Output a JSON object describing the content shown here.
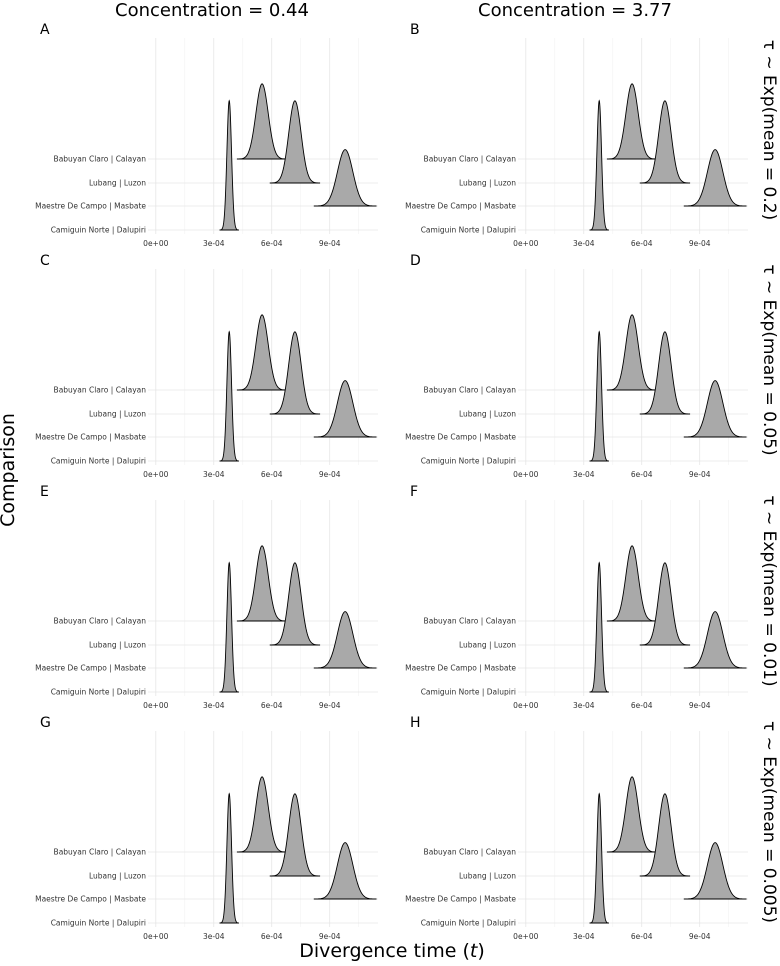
{
  "figure": {
    "x_axis_title": "Divergence time (t)",
    "x_axis_title_main": "Divergence time (",
    "x_axis_title_var": "t",
    "x_axis_title_end": ")",
    "y_axis_title": "Comparison",
    "column_titles": [
      "Concentration = 0.44",
      "Concentration = 3.77"
    ],
    "row_titles": [
      "τ ~ Exp(mean = 0.2)",
      "τ ~ Exp(mean = 0.05)",
      "τ ~ Exp(mean = 0.01)",
      "τ ~ Exp(mean = 0.005)"
    ]
  },
  "chart_data": [
    {
      "panel": "A",
      "type": "area",
      "concentration": "0.44",
      "prior": "τ ~ Exp(mean = 0.2)",
      "categories": [
        "Camiguin Norte | Dalupiri",
        "Maestre De Campo | Masbate",
        "Lubang | Luzon",
        "Babuyan Claro | Calayan"
      ],
      "x_ticks": [
        "0e+00",
        "3e-04",
        "6e-04",
        "9e-04"
      ],
      "xlim": [
        -3e-05,
        0.00115
      ],
      "series": [
        {
          "category": "Camiguin Norte | Dalupiri",
          "mode": 0.00038,
          "sd": 1.2e-05,
          "height": 5.5
        },
        {
          "category": "Maestre De Campo | Masbate",
          "mode": 0.00098,
          "sd": 4e-05,
          "height": 2.4
        },
        {
          "category": "Lubang | Luzon",
          "mode": 0.00072,
          "sd": 3.2e-05,
          "height": 3.5
        },
        {
          "category": "Babuyan Claro | Calayan",
          "mode": 0.00055,
          "sd": 3.2e-05,
          "height": 3.2
        }
      ]
    },
    {
      "panel": "B",
      "type": "area",
      "concentration": "3.77",
      "prior": "τ ~ Exp(mean = 0.2)",
      "categories": [
        "Camiguin Norte | Dalupiri",
        "Maestre De Campo | Masbate",
        "Lubang | Luzon",
        "Babuyan Claro | Calayan"
      ],
      "x_ticks": [
        "0e+00",
        "3e-04",
        "6e-04",
        "9e-04"
      ],
      "xlim": [
        -3e-05,
        0.00115
      ],
      "series": [
        {
          "category": "Camiguin Norte | Dalupiri",
          "mode": 0.00038,
          "sd": 1.2e-05,
          "height": 5.5
        },
        {
          "category": "Maestre De Campo | Masbate",
          "mode": 0.00098,
          "sd": 4e-05,
          "height": 2.4
        },
        {
          "category": "Lubang | Luzon",
          "mode": 0.00072,
          "sd": 3.2e-05,
          "height": 3.5
        },
        {
          "category": "Babuyan Claro | Calayan",
          "mode": 0.00055,
          "sd": 3.2e-05,
          "height": 3.2
        }
      ]
    },
    {
      "panel": "C",
      "type": "area",
      "concentration": "0.44",
      "prior": "τ ~ Exp(mean = 0.05)",
      "categories": [
        "Camiguin Norte | Dalupiri",
        "Maestre De Campo | Masbate",
        "Lubang | Luzon",
        "Babuyan Claro | Calayan"
      ],
      "x_ticks": [
        "0e+00",
        "3e-04",
        "6e-04",
        "9e-04"
      ],
      "xlim": [
        -3e-05,
        0.00115
      ],
      "series": [
        {
          "category": "Camiguin Norte | Dalupiri",
          "mode": 0.00038,
          "sd": 1.2e-05,
          "height": 5.5
        },
        {
          "category": "Maestre De Campo | Masbate",
          "mode": 0.00098,
          "sd": 4e-05,
          "height": 2.4
        },
        {
          "category": "Lubang | Luzon",
          "mode": 0.00072,
          "sd": 3.2e-05,
          "height": 3.5
        },
        {
          "category": "Babuyan Claro | Calayan",
          "mode": 0.00055,
          "sd": 3.2e-05,
          "height": 3.2
        }
      ]
    },
    {
      "panel": "D",
      "type": "area",
      "concentration": "3.77",
      "prior": "τ ~ Exp(mean = 0.05)",
      "categories": [
        "Camiguin Norte | Dalupiri",
        "Maestre De Campo | Masbate",
        "Lubang | Luzon",
        "Babuyan Claro | Calayan"
      ],
      "x_ticks": [
        "0e+00",
        "3e-04",
        "6e-04",
        "9e-04"
      ],
      "xlim": [
        -3e-05,
        0.00115
      ],
      "series": [
        {
          "category": "Camiguin Norte | Dalupiri",
          "mode": 0.00038,
          "sd": 1.2e-05,
          "height": 5.5
        },
        {
          "category": "Maestre De Campo | Masbate",
          "mode": 0.00098,
          "sd": 4e-05,
          "height": 2.4
        },
        {
          "category": "Lubang | Luzon",
          "mode": 0.00072,
          "sd": 3.2e-05,
          "height": 3.5
        },
        {
          "category": "Babuyan Claro | Calayan",
          "mode": 0.00055,
          "sd": 3.2e-05,
          "height": 3.2
        }
      ]
    },
    {
      "panel": "E",
      "type": "area",
      "concentration": "0.44",
      "prior": "τ ~ Exp(mean = 0.01)",
      "categories": [
        "Camiguin Norte | Dalupiri",
        "Maestre De Campo | Masbate",
        "Lubang | Luzon",
        "Babuyan Claro | Calayan"
      ],
      "x_ticks": [
        "0e+00",
        "3e-04",
        "6e-04",
        "9e-04"
      ],
      "xlim": [
        -3e-05,
        0.00115
      ],
      "series": [
        {
          "category": "Camiguin Norte | Dalupiri",
          "mode": 0.00038,
          "sd": 1.2e-05,
          "height": 5.5
        },
        {
          "category": "Maestre De Campo | Masbate",
          "mode": 0.00098,
          "sd": 4e-05,
          "height": 2.4
        },
        {
          "category": "Lubang | Luzon",
          "mode": 0.00072,
          "sd": 3.2e-05,
          "height": 3.5
        },
        {
          "category": "Babuyan Claro | Calayan",
          "mode": 0.00055,
          "sd": 3.2e-05,
          "height": 3.2
        }
      ]
    },
    {
      "panel": "F",
      "type": "area",
      "concentration": "3.77",
      "prior": "τ ~ Exp(mean = 0.01)",
      "categories": [
        "Camiguin Norte | Dalupiri",
        "Maestre De Campo | Masbate",
        "Lubang | Luzon",
        "Babuyan Claro | Calayan"
      ],
      "x_ticks": [
        "0e+00",
        "3e-04",
        "6e-04",
        "9e-04"
      ],
      "xlim": [
        -3e-05,
        0.00115
      ],
      "series": [
        {
          "category": "Camiguin Norte | Dalupiri",
          "mode": 0.00038,
          "sd": 1.2e-05,
          "height": 5.5
        },
        {
          "category": "Maestre De Campo | Masbate",
          "mode": 0.00098,
          "sd": 4e-05,
          "height": 2.4
        },
        {
          "category": "Lubang | Luzon",
          "mode": 0.00072,
          "sd": 3.2e-05,
          "height": 3.5
        },
        {
          "category": "Babuyan Claro | Calayan",
          "mode": 0.00055,
          "sd": 3.2e-05,
          "height": 3.2
        }
      ]
    },
    {
      "panel": "G",
      "type": "area",
      "concentration": "0.44",
      "prior": "τ ~ Exp(mean = 0.005)",
      "categories": [
        "Camiguin Norte | Dalupiri",
        "Maestre De Campo | Masbate",
        "Lubang | Luzon",
        "Babuyan Claro | Calayan"
      ],
      "x_ticks": [
        "0e+00",
        "3e-04",
        "6e-04",
        "9e-04"
      ],
      "xlim": [
        -3e-05,
        0.00115
      ],
      "series": [
        {
          "category": "Camiguin Norte | Dalupiri",
          "mode": 0.00038,
          "sd": 1.2e-05,
          "height": 5.5
        },
        {
          "category": "Maestre De Campo | Masbate",
          "mode": 0.00098,
          "sd": 4e-05,
          "height": 2.4
        },
        {
          "category": "Lubang | Luzon",
          "mode": 0.00072,
          "sd": 3.2e-05,
          "height": 3.5
        },
        {
          "category": "Babuyan Claro | Calayan",
          "mode": 0.00055,
          "sd": 3.2e-05,
          "height": 3.2
        }
      ]
    },
    {
      "panel": "H",
      "type": "area",
      "concentration": "3.77",
      "prior": "τ ~ Exp(mean = 0.005)",
      "categories": [
        "Camiguin Norte | Dalupiri",
        "Maestre De Campo | Masbate",
        "Lubang | Luzon",
        "Babuyan Claro | Calayan"
      ],
      "x_ticks": [
        "0e+00",
        "3e-04",
        "6e-04",
        "9e-04"
      ],
      "xlim": [
        -3e-05,
        0.00115
      ],
      "series": [
        {
          "category": "Camiguin Norte | Dalupiri",
          "mode": 0.00038,
          "sd": 1.2e-05,
          "height": 5.5
        },
        {
          "category": "Maestre De Campo | Masbate",
          "mode": 0.00098,
          "sd": 4e-05,
          "height": 2.4
        },
        {
          "category": "Lubang | Luzon",
          "mode": 0.00072,
          "sd": 3.2e-05,
          "height": 3.5
        },
        {
          "category": "Babuyan Claro | Calayan",
          "mode": 0.00055,
          "sd": 3.2e-05,
          "height": 3.2
        }
      ]
    }
  ]
}
